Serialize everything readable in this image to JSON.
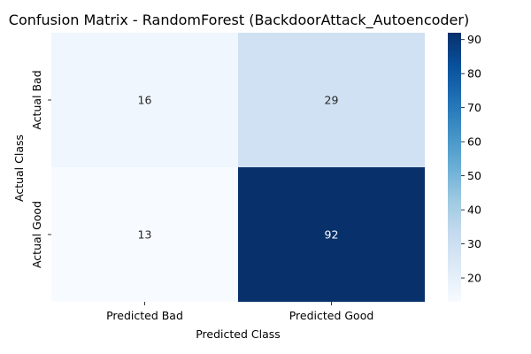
{
  "chart_data": {
    "type": "heatmap",
    "title": "Confusion Matrix - RandomForest (BackdoorAttack_Autoencoder)",
    "xlabel": "Predicted Class",
    "ylabel": "Actual Class",
    "x_categories": [
      "Predicted Bad",
      "Predicted Good"
    ],
    "y_categories": [
      "Actual Bad",
      "Actual Good"
    ],
    "values": [
      [
        16,
        29
      ],
      [
        13,
        92
      ]
    ],
    "colormap": "Blues",
    "colorbar": {
      "range": [
        13,
        92
      ],
      "ticks": [
        20,
        30,
        40,
        50,
        60,
        70,
        80,
        90
      ]
    },
    "colors": {
      "light_text": "#ffffff",
      "dark_text": "#262626"
    }
  }
}
